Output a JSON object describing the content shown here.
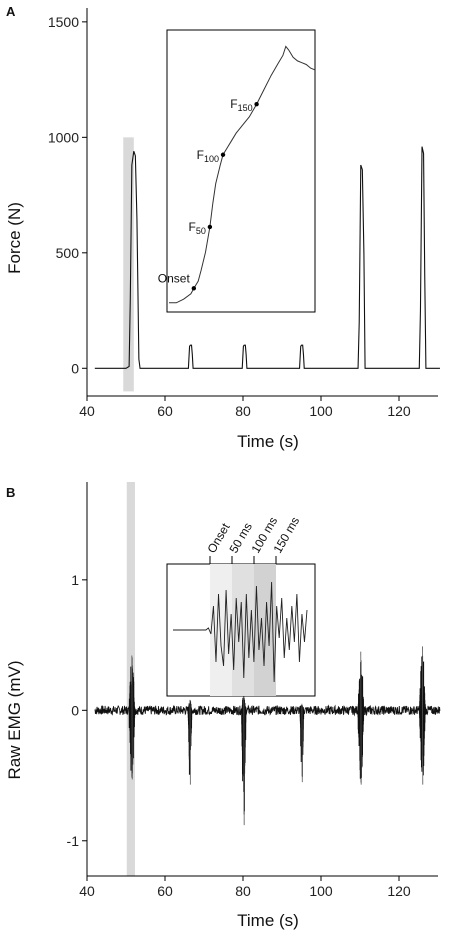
{
  "chart_data": [
    {
      "panel": "A",
      "type": "line",
      "ylabel": "Force (N)",
      "xlabel": "Time (s)",
      "xlim": [
        40,
        130
      ],
      "ylim": [
        -120,
        1560
      ],
      "x_ticks": [
        40,
        60,
        80,
        100,
        120
      ],
      "y_ticks": [
        0,
        500,
        1000,
        1500
      ],
      "grid": false,
      "highlight_band": {
        "x": [
          49.3,
          52.0
        ],
        "y": [
          -100,
          1000
        ]
      },
      "series": [
        {
          "x": [
            42,
            49,
            50,
            50.8,
            51.1,
            51.5,
            52,
            52.4,
            52.8,
            53.3,
            53.6,
            66,
            66.3,
            66.5,
            66.8,
            67,
            67.2,
            79.8,
            80.1,
            80.3,
            80.6,
            80.8,
            81,
            94.5,
            94.8,
            95,
            95.3,
            95.5,
            95.7,
            109.5,
            109.8,
            110.2,
            110.6,
            111,
            111.3,
            125.2,
            125.5,
            125.9,
            126.3,
            126.6,
            126.9,
            130.5
          ],
          "y": [
            0,
            0,
            0,
            8,
            300,
            880,
            940,
            920,
            650,
            40,
            0,
            0,
            95,
            100,
            100,
            60,
            0,
            0,
            95,
            100,
            100,
            60,
            0,
            0,
            95,
            100,
            100,
            60,
            0,
            0,
            200,
            880,
            860,
            500,
            0,
            0,
            250,
            960,
            930,
            400,
            0,
            0
          ]
        }
      ],
      "inset": {
        "series": {
          "x": [
            0,
            5,
            10,
            15,
            17,
            20,
            22,
            25,
            28,
            30,
            32,
            35,
            37,
            40,
            43,
            46,
            50,
            55,
            60,
            65,
            70,
            75,
            78,
            80,
            82,
            85,
            88,
            91,
            94,
            97,
            100
          ],
          "y": [
            0,
            0,
            2,
            5,
            8,
            12,
            18,
            28,
            42,
            55,
            66,
            76,
            82,
            86,
            90,
            94,
            98,
            103,
            110,
            118,
            126,
            133,
            137,
            142,
            140,
            136,
            134,
            133,
            132,
            130,
            129
          ]
        },
        "ylim": [
          -4,
          150
        ],
        "points": [
          {
            "label": "Onset",
            "sub": "",
            "x": 17,
            "y": 8
          },
          {
            "label": "F",
            "sub": "50",
            "x": 28,
            "y": 42
          },
          {
            "label": "F",
            "sub": "100",
            "x": 37,
            "y": 82
          },
          {
            "label": "F",
            "sub": "150",
            "x": 60,
            "y": 110
          }
        ]
      }
    },
    {
      "panel": "B",
      "type": "line",
      "ylabel": "Raw EMG (mV)",
      "xlabel": "Time (s)",
      "xlim": [
        40,
        130
      ],
      "ylim": [
        -1.27,
        1.75
      ],
      "x_ticks": [
        40,
        60,
        80,
        100,
        120
      ],
      "y_ticks": [
        -1,
        0,
        1
      ],
      "grid": false,
      "highlight_band": {
        "x": [
          50.2,
          52.3
        ]
      },
      "bursts": [
        {
          "x": 51.5,
          "max": 0.42,
          "min": -0.53,
          "dur": 1.6
        },
        {
          "x": 66.4,
          "max": 0.08,
          "min": -0.57,
          "dur": 1.0
        },
        {
          "x": 80.2,
          "max": 0.12,
          "min": -0.88,
          "dur": 1.2
        },
        {
          "x": 95.1,
          "max": 0.05,
          "min": -0.55,
          "dur": 1.0
        },
        {
          "x": 110.2,
          "max": 0.45,
          "min": -0.57,
          "dur": 1.6
        },
        {
          "x": 126.0,
          "max": 0.49,
          "min": -0.57,
          "dur": 1.6
        }
      ],
      "inset": {
        "markers": [
          {
            "label": "Onset",
            "t": 0
          },
          {
            "label": "50 ms",
            "t": 50
          },
          {
            "label": "100 ms",
            "t": 100
          },
          {
            "label": "150 ms",
            "t": 150
          }
        ],
        "trace": [
          0,
          0,
          0,
          0,
          0,
          0,
          0,
          0,
          0,
          0,
          0,
          0,
          0,
          0,
          0.05,
          -0.1,
          0.6,
          -0.8,
          0.9,
          -0.4,
          -0.9,
          1.0,
          -0.6,
          0.4,
          -1.0,
          0.8,
          -0.3,
          0.7,
          -1.2,
          0.9,
          -0.7,
          0.5,
          -0.8,
          1.1,
          -0.5,
          0.3,
          -0.9,
          0.7,
          -0.4,
          1.2,
          -1.3,
          0.6,
          -0.2,
          0.8,
          -0.7,
          0.3,
          -0.5,
          0.6,
          -0.3,
          0.9,
          -0.8,
          0.4,
          -0.3,
          0.5
        ]
      }
    }
  ]
}
